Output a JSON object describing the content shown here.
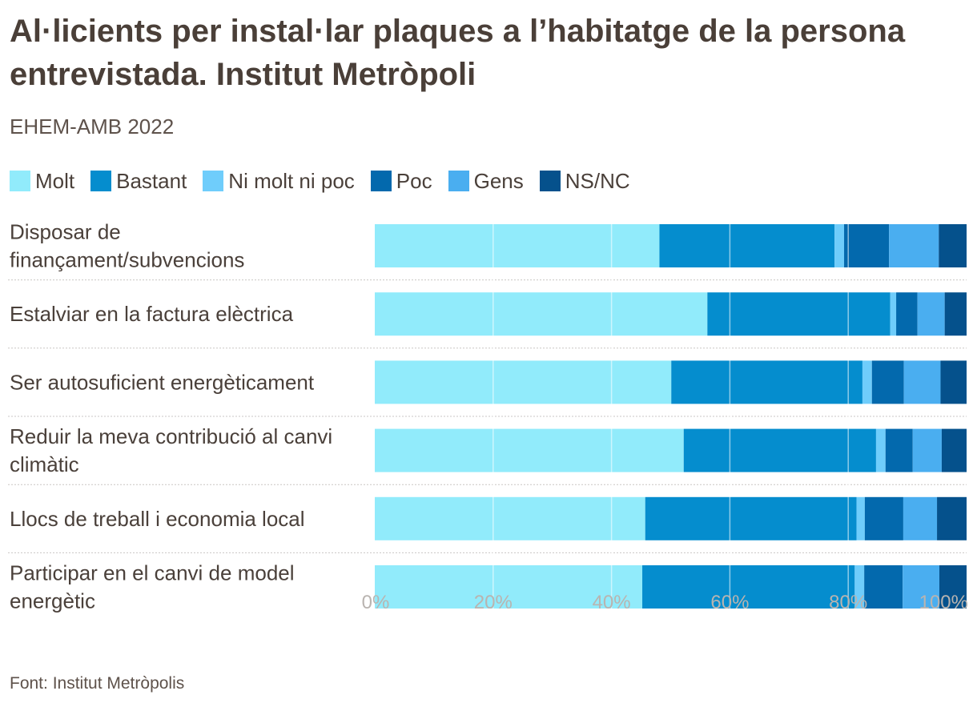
{
  "title": "Al·licients per instal·lar plaques a l’habitatge de la persona entrevistada. Institut Metròpoli",
  "subtitle": "EHEM-AMB 2022",
  "source": "Font: Institut Metròpolis",
  "chart_data": {
    "type": "bar",
    "orientation": "horizontal",
    "stacked": true,
    "percent_stacked": true,
    "title": "Al·licients per instal·lar plaques a l’habitatge de la persona entrevistada. Institut Metròpoli",
    "subtitle": "EHEM-AMB 2022",
    "xlabel": "",
    "ylabel": "",
    "xlim": [
      0,
      100
    ],
    "xticks": [
      "0%",
      "20%",
      "40%",
      "60%",
      "80%",
      "100%"
    ],
    "grid": true,
    "legend_position": "top-left",
    "categories": [
      [
        "Disposar de",
        "finançament/subvencions"
      ],
      [
        "Estalviar en la factura elèctrica"
      ],
      [
        "Ser autosuficient energèticament"
      ],
      [
        "Reduir la meva contribució al canvi",
        "climàtic"
      ],
      [
        "Llocs de treball i economia local"
      ],
      [
        "Participar en el canvi de model",
        "energètic"
      ]
    ],
    "series": [
      {
        "name": "Molt",
        "color": "#91ebfb",
        "values": [
          48.1,
          56.2,
          50.1,
          52.2,
          45.7,
          45.2
        ]
      },
      {
        "name": "Bastant",
        "color": "#058dce",
        "values": [
          29.6,
          30.9,
          32.3,
          32.5,
          35.7,
          35.9
        ]
      },
      {
        "name": "Ni molt ni poc",
        "color": "#6fcdfb",
        "values": [
          1.6,
          1.0,
          1.6,
          1.6,
          1.4,
          1.6
        ]
      },
      {
        "name": "Poc",
        "color": "#0369ad",
        "values": [
          7.6,
          3.6,
          5.4,
          4.6,
          6.5,
          6.5
        ]
      },
      {
        "name": "Gens",
        "color": "#4aaef0",
        "values": [
          8.4,
          4.6,
          6.2,
          4.9,
          5.7,
          6.2
        ]
      },
      {
        "name": "NS/NC",
        "color": "#05518c",
        "values": [
          4.7,
          3.7,
          4.4,
          4.2,
          5.0,
          4.6
        ]
      }
    ]
  }
}
